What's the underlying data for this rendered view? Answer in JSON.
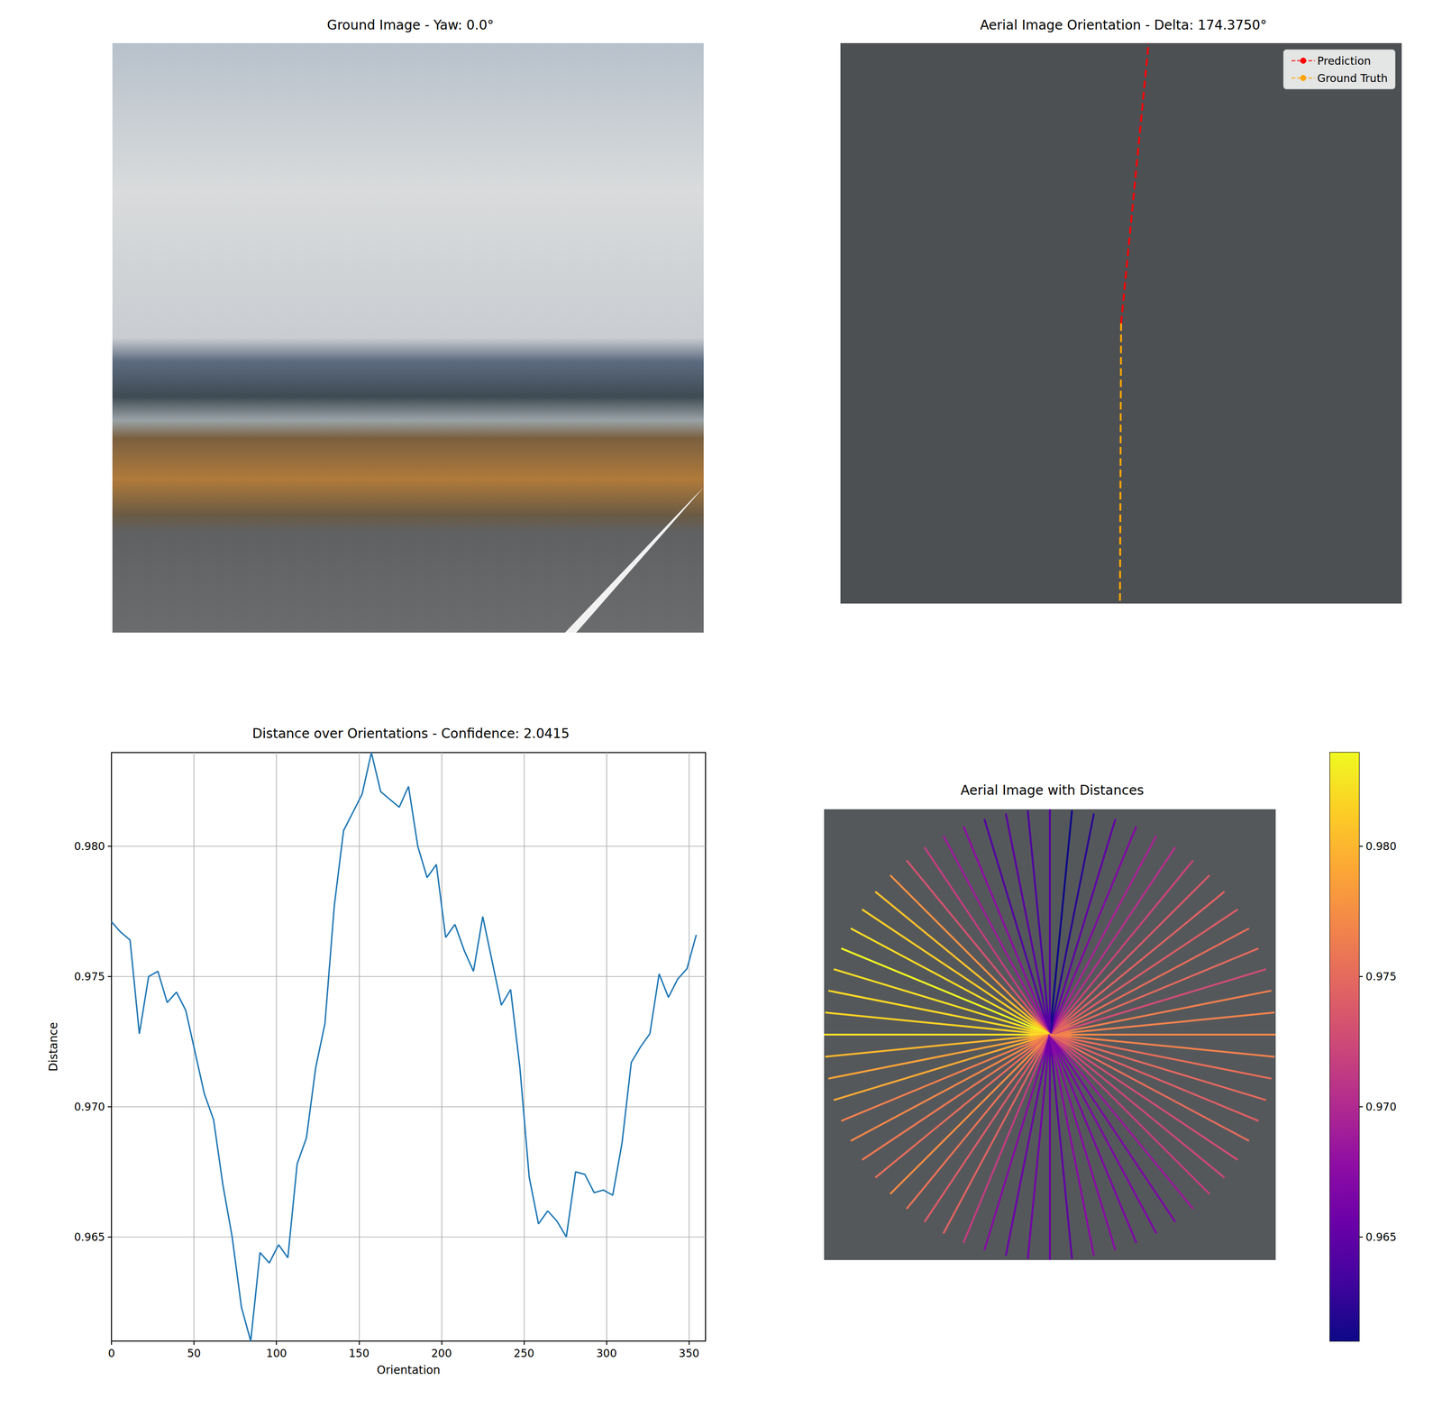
{
  "chart_data": [
    {
      "type": "image",
      "title": "Ground Image - Yaw: 0.0°",
      "tick_labels": false
    },
    {
      "type": "line",
      "title": "Aerial Image Orientation - Delta: 174.3750°",
      "legend": "upper right",
      "tick_labels": false,
      "xlim": [
        0,
        100
      ],
      "ylim": [
        0,
        100
      ],
      "series": [
        {
          "name": "Prediction",
          "color": "#ff0000",
          "line_style": "dashed",
          "x": [
            50,
            54.9
          ],
          "values": [
            50,
            100
          ]
        },
        {
          "name": "Ground Truth",
          "color": "#ffa500",
          "line_style": "dashed",
          "x": [
            50,
            49.8
          ],
          "values": [
            50,
            0
          ]
        }
      ]
    },
    {
      "type": "line",
      "title": "Distance over Orientations - Confidence: 2.0415",
      "x_label": "Orientation",
      "y_label": "Distance",
      "color": "#1f77b4",
      "grid": true,
      "xlim": [
        0,
        360
      ],
      "xticks": [
        0,
        50,
        100,
        150,
        200,
        250,
        300,
        350
      ],
      "ylim": [
        0.961,
        0.9836
      ],
      "yticks": [
        0.965,
        {
          "value": 0.97,
          "label": "0.970"
        },
        0.975,
        {
          "value": 0.98,
          "label": "0.980"
        }
      ],
      "x": [
        0,
        5.625,
        11.25,
        16.875,
        22.5,
        28.125,
        33.75,
        39.375,
        45,
        50.625,
        56.25,
        61.875,
        67.5,
        73.125,
        78.75,
        84.375,
        90,
        95.625,
        101.25,
        106.875,
        112.5,
        118.125,
        123.75,
        129.375,
        135,
        140.625,
        146.25,
        151.875,
        157.5,
        163.125,
        168.75,
        174.375,
        180,
        185.625,
        191.25,
        196.875,
        202.5,
        208.125,
        213.75,
        219.375,
        225,
        230.625,
        236.25,
        241.875,
        247.5,
        253.125,
        258.75,
        264.375,
        270,
        275.625,
        281.25,
        286.875,
        292.5,
        298.125,
        303.75,
        309.375,
        315,
        320.625,
        326.25,
        331.875,
        337.5,
        343.125,
        348.75,
        354.375
      ],
      "values": [
        0.9771,
        0.9767,
        0.9764,
        0.9728,
        0.975,
        0.9752,
        0.974,
        0.9744,
        0.9737,
        0.9721,
        0.9705,
        0.9695,
        0.967,
        0.965,
        0.9623,
        0.961,
        0.9644,
        0.964,
        0.9647,
        0.9642,
        0.9678,
        0.9688,
        0.9715,
        0.9732,
        0.9777,
        0.9806,
        0.9813,
        0.982,
        0.9836,
        0.9821,
        0.9818,
        0.9815,
        0.9823,
        0.98,
        0.9788,
        0.9793,
        0.9765,
        0.977,
        0.976,
        0.9752,
        0.9773,
        0.9756,
        0.9739,
        0.9745,
        0.9715,
        0.9673,
        0.9655,
        0.966,
        0.9656,
        0.965,
        0.9675,
        0.9674,
        0.9667,
        0.9668,
        0.9666,
        0.9686,
        0.9717,
        0.9723,
        0.9728,
        0.9751,
        0.9742,
        0.9749,
        0.9753,
        0.9766
      ]
    },
    {
      "type": "radial",
      "title": "Aerial Image with Distances",
      "color": "plasma",
      "tick_labels": false,
      "colorbar_lim": [
        0.961,
        0.9836
      ],
      "colorbar_ticks": [
        0.965,
        {
          "value": 0.97,
          "label": "0.970"
        },
        0.975,
        {
          "value": 0.98,
          "label": "0.980"
        }
      ],
      "x": [
        0,
        5.625,
        11.25,
        16.875,
        22.5,
        28.125,
        33.75,
        39.375,
        45,
        50.625,
        56.25,
        61.875,
        67.5,
        73.125,
        78.75,
        84.375,
        90,
        95.625,
        101.25,
        106.875,
        112.5,
        118.125,
        123.75,
        129.375,
        135,
        140.625,
        146.25,
        151.875,
        157.5,
        163.125,
        168.75,
        174.375,
        180,
        185.625,
        191.25,
        196.875,
        202.5,
        208.125,
        213.75,
        219.375,
        225,
        230.625,
        236.25,
        241.875,
        247.5,
        253.125,
        258.75,
        264.375,
        270,
        275.625,
        281.25,
        286.875,
        292.5,
        298.125,
        303.75,
        309.375,
        315,
        320.625,
        326.25,
        331.875,
        337.5,
        343.125,
        348.75,
        354.375
      ],
      "values": [
        0.9771,
        0.9767,
        0.9764,
        0.9728,
        0.975,
        0.9752,
        0.974,
        0.9744,
        0.9737,
        0.9721,
        0.9705,
        0.9695,
        0.967,
        0.965,
        0.9623,
        0.961,
        0.9644,
        0.964,
        0.9647,
        0.9642,
        0.9678,
        0.9688,
        0.9715,
        0.9732,
        0.9777,
        0.9806,
        0.9813,
        0.982,
        0.9836,
        0.9821,
        0.9818,
        0.9815,
        0.9823,
        0.98,
        0.9788,
        0.9793,
        0.9765,
        0.977,
        0.976,
        0.9752,
        0.9773,
        0.9756,
        0.9739,
        0.9745,
        0.9715,
        0.9673,
        0.9655,
        0.966,
        0.9656,
        0.965,
        0.9675,
        0.9674,
        0.9667,
        0.9668,
        0.9666,
        0.9686,
        0.9717,
        0.9723,
        0.9728,
        0.9751,
        0.9742,
        0.9749,
        0.9753,
        0.9766
      ]
    }
  ]
}
